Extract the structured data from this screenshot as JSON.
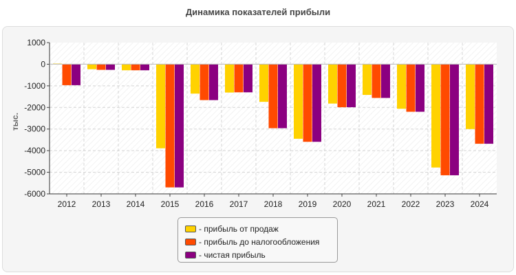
{
  "chart_data": {
    "type": "bar",
    "title": "Динамика показателей прибыли",
    "ylabel": "тыс.",
    "xlabel": "",
    "ylim": [
      -6000,
      1000
    ],
    "yticks": [
      "1000",
      "0",
      "-1000",
      "-2000",
      "-3000",
      "-4000",
      "-5000",
      "-6000"
    ],
    "categories": [
      "2012",
      "2013",
      "2014",
      "2015",
      "2016",
      "2017",
      "2018",
      "2019",
      "2020",
      "2021",
      "2022",
      "2023",
      "2024"
    ],
    "grid": true,
    "legend_position": "bottom",
    "series": [
      {
        "name": "- прибыль от продаж",
        "color": "#FFD200",
        "values": [
          30,
          -230,
          -280,
          -3890,
          -1360,
          -1310,
          -1740,
          -3450,
          -1820,
          -1420,
          -2060,
          -4780,
          -3000
        ]
      },
      {
        "name": "- прибыль до налогообложения",
        "color": "#FF4A00",
        "values": [
          -970,
          -260,
          -280,
          -5700,
          -1660,
          -1300,
          -2960,
          -3590,
          -1990,
          -1560,
          -2200,
          -5140,
          -3680
        ]
      },
      {
        "name": "- чистая прибыль",
        "color": "#8B0080",
        "values": [
          -970,
          -260,
          -280,
          -5700,
          -1660,
          -1300,
          -2960,
          -3590,
          -1990,
          -1560,
          -2200,
          -5140,
          -3680
        ]
      }
    ]
  }
}
